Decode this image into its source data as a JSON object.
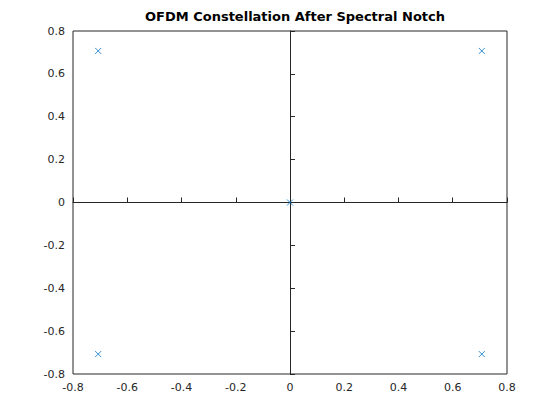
{
  "chart_data": {
    "type": "scatter",
    "title": "OFDM Constellation After Spectral Notch",
    "x": [
      -0.7071,
      0.7071,
      -0.7071,
      0.7071,
      0
    ],
    "values": [
      0.7071,
      0.7071,
      -0.7071,
      -0.7071,
      0
    ],
    "color": "#0072bd",
    "marker": "x",
    "xlim": [
      -0.8,
      0.8
    ],
    "xticks": [
      -0.8,
      -0.6,
      -0.4,
      -0.2,
      0,
      0.2,
      0.4,
      0.6,
      0.8
    ],
    "ylim": [
      -0.8,
      0.8
    ],
    "yticks": [
      -0.8,
      -0.6,
      -0.4,
      -0.2,
      0,
      0.2,
      0.4,
      0.6,
      0.8
    ],
    "grid": false
  }
}
